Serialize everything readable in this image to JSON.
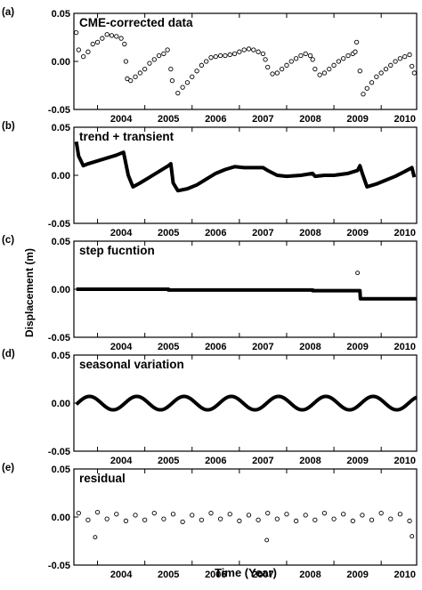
{
  "figure": {
    "xlabel": "Time (Year)",
    "ylabel": "Displacement (m)"
  },
  "chart_data": [
    {
      "type": "scatter",
      "panel_label": "(a)",
      "title": "CME-corrected data",
      "xlim": [
        2003.5,
        2010.75
      ],
      "ylim": [
        -0.05,
        0.05
      ],
      "yticks": [
        "0.05",
        "0.00",
        "-0.05"
      ],
      "yticks_values": [
        0.05,
        0.0,
        -0.05
      ],
      "xticks": [
        "2004",
        "2005",
        "2006",
        "2007",
        "2008",
        "2009",
        "2010"
      ],
      "grid": false,
      "series": [
        {
          "x": [
            2003.55,
            2003.6,
            2003.7,
            2003.8,
            2003.9,
            2004.0,
            2004.1,
            2004.2,
            2004.3,
            2004.4,
            2004.5,
            2004.57,
            2004.6,
            2004.63,
            2004.7,
            2004.8,
            2004.9,
            2005.0,
            2005.1,
            2005.2,
            2005.3,
            2005.4,
            2005.48,
            2005.55,
            2005.58,
            2005.7,
            2005.8,
            2005.9,
            2006.0,
            2006.1,
            2006.2,
            2006.3,
            2006.4,
            2006.5,
            2006.6,
            2006.7,
            2006.8,
            2006.9,
            2007.0,
            2007.1,
            2007.2,
            2007.3,
            2007.4,
            2007.5,
            2007.55,
            2007.6,
            2007.7,
            2007.8,
            2007.9,
            2008.0,
            2008.1,
            2008.2,
            2008.3,
            2008.4,
            2008.5,
            2008.55,
            2008.6,
            2008.7,
            2008.8,
            2008.9,
            2009.0,
            2009.1,
            2009.2,
            2009.3,
            2009.4,
            2009.45,
            2009.48,
            2009.55,
            2009.62,
            2009.7,
            2009.8,
            2009.9,
            2010.0,
            2010.1,
            2010.2,
            2010.3,
            2010.4,
            2010.5,
            2010.6,
            2010.65,
            2010.7
          ],
          "y": [
            0.03,
            0.012,
            0.005,
            0.01,
            0.018,
            0.02,
            0.024,
            0.028,
            0.027,
            0.026,
            0.024,
            0.018,
            0.0,
            -0.018,
            -0.02,
            -0.016,
            -0.012,
            -0.008,
            -0.002,
            0.002,
            0.006,
            0.008,
            0.012,
            -0.008,
            -0.02,
            -0.033,
            -0.027,
            -0.022,
            -0.016,
            -0.01,
            -0.004,
            0.0,
            0.004,
            0.005,
            0.006,
            0.006,
            0.007,
            0.008,
            0.01,
            0.012,
            0.013,
            0.012,
            0.01,
            0.008,
            0.002,
            -0.006,
            -0.013,
            -0.012,
            -0.008,
            -0.004,
            0.0,
            0.003,
            0.006,
            0.008,
            0.006,
            0.002,
            -0.008,
            -0.014,
            -0.012,
            -0.008,
            -0.004,
            0.0,
            0.003,
            0.006,
            0.008,
            0.01,
            0.02,
            -0.01,
            -0.034,
            -0.028,
            -0.022,
            -0.016,
            -0.012,
            -0.008,
            -0.004,
            0.0,
            0.003,
            0.005,
            0.007,
            -0.005,
            -0.012
          ]
        }
      ]
    },
    {
      "type": "line",
      "panel_label": "(b)",
      "title": "trend + transient",
      "xlim": [
        2003.5,
        2010.75
      ],
      "ylim": [
        -0.05,
        0.05
      ],
      "yticks": [
        "0.05",
        "0.00",
        "-0.05"
      ],
      "yticks_values": [
        0.05,
        0.0,
        -0.05
      ],
      "xticks": [
        "2004",
        "2005",
        "2006",
        "2007",
        "2008",
        "2009",
        "2010"
      ],
      "grid": false,
      "series": [
        {
          "x": [
            2003.55,
            2003.6,
            2003.7,
            2003.8,
            2004.0,
            2004.2,
            2004.4,
            2004.55,
            2004.65,
            2004.75,
            2004.9,
            2005.1,
            2005.3,
            2005.5,
            2005.55,
            2005.6,
            2005.7,
            2005.9,
            2006.1,
            2006.3,
            2006.5,
            2006.7,
            2006.9,
            2007.1,
            2007.3,
            2007.5,
            2007.6,
            2007.8,
            2008.0,
            2008.3,
            2008.55,
            2008.6,
            2008.8,
            2009.0,
            2009.3,
            2009.5,
            2009.55,
            2009.6,
            2009.7,
            2009.9,
            2010.1,
            2010.3,
            2010.5,
            2010.65,
            2010.7
          ],
          "y": [
            0.035,
            0.02,
            0.01,
            0.012,
            0.015,
            0.018,
            0.021,
            0.024,
            0.0,
            -0.012,
            -0.008,
            -0.002,
            0.004,
            0.01,
            0.012,
            -0.008,
            -0.016,
            -0.014,
            -0.01,
            -0.004,
            0.002,
            0.006,
            0.009,
            0.008,
            0.008,
            0.008,
            0.005,
            0.0,
            -0.001,
            0.0,
            0.002,
            -0.001,
            0.0,
            0.0,
            0.002,
            0.005,
            0.01,
            0.002,
            -0.012,
            -0.009,
            -0.005,
            -0.001,
            0.004,
            0.008,
            -0.002
          ]
        }
      ]
    },
    {
      "type": "line",
      "panel_label": "(c)",
      "title": "step fucntion",
      "xlim": [
        2003.5,
        2010.75
      ],
      "ylim": [
        -0.05,
        0.05
      ],
      "yticks": [
        "0.05",
        "0.00",
        "-0.05"
      ],
      "yticks_values": [
        0.05,
        0.0,
        -0.05
      ],
      "xticks": [
        "2004",
        "2005",
        "2006",
        "2007",
        "2008",
        "2009",
        "2010"
      ],
      "grid": false,
      "series": [
        {
          "x": [
            2003.55,
            2005.5,
            2005.5,
            2008.55,
            2008.55,
            2009.55,
            2009.56,
            2010.75
          ],
          "y": [
            0.0,
            0.0,
            -0.0008,
            -0.0008,
            -0.0015,
            -0.0015,
            -0.01,
            -0.01
          ]
        }
      ],
      "outliers": [
        {
          "x": 2009.5,
          "y": 0.017
        }
      ]
    },
    {
      "type": "line",
      "panel_label": "(d)",
      "title": "seasonal variation",
      "xlim": [
        2003.5,
        2010.75
      ],
      "ylim": [
        -0.05,
        0.05
      ],
      "yticks": [
        "0.05",
        "0.00",
        "-0.05"
      ],
      "yticks_values": [
        0.05,
        0.0,
        -0.05
      ],
      "xticks": [
        "2004",
        "2005",
        "2006",
        "2007",
        "2008",
        "2009",
        "2010"
      ],
      "grid": false,
      "seasonal": {
        "amplitude": 0.007,
        "period_years": 1.0,
        "peak_at": 2003.83
      }
    },
    {
      "type": "scatter",
      "panel_label": "(e)",
      "title": "residual",
      "xlim": [
        2003.5,
        2010.75
      ],
      "ylim": [
        -0.05,
        0.05
      ],
      "yticks": [
        "0.05",
        "0.00",
        "-0.05"
      ],
      "yticks_values": [
        0.05,
        0.0,
        -0.05
      ],
      "xticks": [
        "2004",
        "2005",
        "2006",
        "2007",
        "2008",
        "2009",
        "2010"
      ],
      "grid": false,
      "series": [
        {
          "x": [
            2003.6,
            2003.8,
            2004.0,
            2004.2,
            2004.4,
            2004.6,
            2004.8,
            2005.0,
            2005.2,
            2005.4,
            2005.6,
            2005.8,
            2006.0,
            2006.2,
            2006.4,
            2006.6,
            2006.8,
            2007.0,
            2007.2,
            2007.4,
            2007.6,
            2007.8,
            2008.0,
            2008.2,
            2008.4,
            2008.6,
            2008.8,
            2009.0,
            2009.2,
            2009.4,
            2009.6,
            2009.8,
            2010.0,
            2010.2,
            2010.4,
            2010.6
          ],
          "y": [
            0.004,
            -0.003,
            0.005,
            -0.002,
            0.003,
            -0.004,
            0.002,
            -0.003,
            0.004,
            -0.002,
            0.003,
            -0.005,
            0.002,
            -0.003,
            0.004,
            -0.002,
            0.003,
            -0.004,
            0.002,
            -0.003,
            0.004,
            -0.002,
            0.003,
            -0.004,
            0.002,
            -0.003,
            0.004,
            -0.002,
            0.003,
            -0.004,
            0.002,
            -0.003,
            0.004,
            -0.002,
            0.003,
            -0.004
          ]
        }
      ],
      "outliers": [
        {
          "x": 2003.95,
          "y": -0.021
        },
        {
          "x": 2007.58,
          "y": -0.024
        },
        {
          "x": 2010.65,
          "y": -0.02
        }
      ]
    }
  ]
}
